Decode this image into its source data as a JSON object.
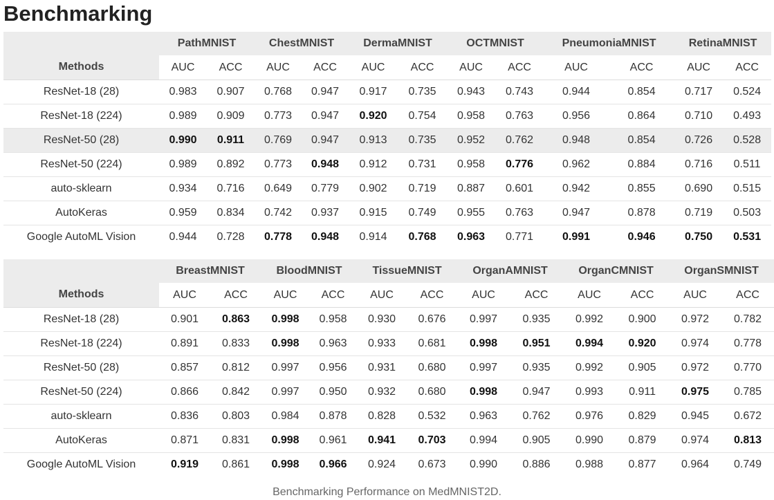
{
  "title": "Benchmarking",
  "caption": "Benchmarking Performance on MedMNIST2D.",
  "methods_header": "Methods",
  "auc_label": "AUC",
  "acc_label": "ACC",
  "tables": [
    {
      "datasets": [
        "PathMNIST",
        "ChestMNIST",
        "DermaMNIST",
        "OCTMNIST",
        "PneumoniaMNIST",
        "RetinaMNIST"
      ],
      "rows": [
        {
          "method": "ResNet-18 (28)",
          "highlight": false,
          "values": [
            "0.983",
            "0.907",
            "0.768",
            "0.947",
            "0.917",
            "0.735",
            "0.943",
            "0.743",
            "0.944",
            "0.854",
            "0.717",
            "0.524"
          ],
          "bold": [
            false,
            false,
            false,
            false,
            false,
            false,
            false,
            false,
            false,
            false,
            false,
            false
          ]
        },
        {
          "method": "ResNet-18 (224)",
          "highlight": false,
          "values": [
            "0.989",
            "0.909",
            "0.773",
            "0.947",
            "0.920",
            "0.754",
            "0.958",
            "0.763",
            "0.956",
            "0.864",
            "0.710",
            "0.493"
          ],
          "bold": [
            false,
            false,
            false,
            false,
            true,
            false,
            false,
            false,
            false,
            false,
            false,
            false
          ]
        },
        {
          "method": "ResNet-50 (28)",
          "highlight": true,
          "values": [
            "0.990",
            "0.911",
            "0.769",
            "0.947",
            "0.913",
            "0.735",
            "0.952",
            "0.762",
            "0.948",
            "0.854",
            "0.726",
            "0.528"
          ],
          "bold": [
            true,
            true,
            false,
            false,
            false,
            false,
            false,
            false,
            false,
            false,
            false,
            false
          ]
        },
        {
          "method": "ResNet-50 (224)",
          "highlight": false,
          "values": [
            "0.989",
            "0.892",
            "0.773",
            "0.948",
            "0.912",
            "0.731",
            "0.958",
            "0.776",
            "0.962",
            "0.884",
            "0.716",
            "0.511"
          ],
          "bold": [
            false,
            false,
            false,
            true,
            false,
            false,
            false,
            true,
            false,
            false,
            false,
            false
          ]
        },
        {
          "method": "auto-sklearn",
          "highlight": false,
          "values": [
            "0.934",
            "0.716",
            "0.649",
            "0.779",
            "0.902",
            "0.719",
            "0.887",
            "0.601",
            "0.942",
            "0.855",
            "0.690",
            "0.515"
          ],
          "bold": [
            false,
            false,
            false,
            false,
            false,
            false,
            false,
            false,
            false,
            false,
            false,
            false
          ]
        },
        {
          "method": "AutoKeras",
          "highlight": false,
          "values": [
            "0.959",
            "0.834",
            "0.742",
            "0.937",
            "0.915",
            "0.749",
            "0.955",
            "0.763",
            "0.947",
            "0.878",
            "0.719",
            "0.503"
          ],
          "bold": [
            false,
            false,
            false,
            false,
            false,
            false,
            false,
            false,
            false,
            false,
            false,
            false
          ]
        },
        {
          "method": "Google AutoML Vision",
          "highlight": false,
          "values": [
            "0.944",
            "0.728",
            "0.778",
            "0.948",
            "0.914",
            "0.768",
            "0.963",
            "0.771",
            "0.991",
            "0.946",
            "0.750",
            "0.531"
          ],
          "bold": [
            false,
            false,
            true,
            true,
            false,
            true,
            true,
            false,
            true,
            true,
            true,
            true
          ]
        }
      ]
    },
    {
      "datasets": [
        "BreastMNIST",
        "BloodMNIST",
        "TissueMNIST",
        "OrganAMNIST",
        "OrganCMNIST",
        "OrganSMNIST"
      ],
      "rows": [
        {
          "method": "ResNet-18 (28)",
          "highlight": false,
          "values": [
            "0.901",
            "0.863",
            "0.998",
            "0.958",
            "0.930",
            "0.676",
            "0.997",
            "0.935",
            "0.992",
            "0.900",
            "0.972",
            "0.782"
          ],
          "bold": [
            false,
            true,
            true,
            false,
            false,
            false,
            false,
            false,
            false,
            false,
            false,
            false
          ]
        },
        {
          "method": "ResNet-18 (224)",
          "highlight": false,
          "values": [
            "0.891",
            "0.833",
            "0.998",
            "0.963",
            "0.933",
            "0.681",
            "0.998",
            "0.951",
            "0.994",
            "0.920",
            "0.974",
            "0.778"
          ],
          "bold": [
            false,
            false,
            true,
            false,
            false,
            false,
            true,
            true,
            true,
            true,
            false,
            false
          ]
        },
        {
          "method": "ResNet-50 (28)",
          "highlight": false,
          "values": [
            "0.857",
            "0.812",
            "0.997",
            "0.956",
            "0.931",
            "0.680",
            "0.997",
            "0.935",
            "0.992",
            "0.905",
            "0.972",
            "0.770"
          ],
          "bold": [
            false,
            false,
            false,
            false,
            false,
            false,
            false,
            false,
            false,
            false,
            false,
            false
          ]
        },
        {
          "method": "ResNet-50 (224)",
          "highlight": false,
          "values": [
            "0.866",
            "0.842",
            "0.997",
            "0.950",
            "0.932",
            "0.680",
            "0.998",
            "0.947",
            "0.993",
            "0.911",
            "0.975",
            "0.785"
          ],
          "bold": [
            false,
            false,
            false,
            false,
            false,
            false,
            true,
            false,
            false,
            false,
            true,
            false
          ]
        },
        {
          "method": "auto-sklearn",
          "highlight": false,
          "values": [
            "0.836",
            "0.803",
            "0.984",
            "0.878",
            "0.828",
            "0.532",
            "0.963",
            "0.762",
            "0.976",
            "0.829",
            "0.945",
            "0.672"
          ],
          "bold": [
            false,
            false,
            false,
            false,
            false,
            false,
            false,
            false,
            false,
            false,
            false,
            false
          ]
        },
        {
          "method": "AutoKeras",
          "highlight": false,
          "values": [
            "0.871",
            "0.831",
            "0.998",
            "0.961",
            "0.941",
            "0.703",
            "0.994",
            "0.905",
            "0.990",
            "0.879",
            "0.974",
            "0.813"
          ],
          "bold": [
            false,
            false,
            true,
            false,
            true,
            true,
            false,
            false,
            false,
            false,
            false,
            true
          ]
        },
        {
          "method": "Google AutoML Vision",
          "highlight": false,
          "values": [
            "0.919",
            "0.861",
            "0.998",
            "0.966",
            "0.924",
            "0.673",
            "0.990",
            "0.886",
            "0.988",
            "0.877",
            "0.964",
            "0.749"
          ],
          "bold": [
            true,
            false,
            true,
            true,
            false,
            false,
            false,
            false,
            false,
            false,
            false,
            false
          ]
        }
      ]
    }
  ]
}
